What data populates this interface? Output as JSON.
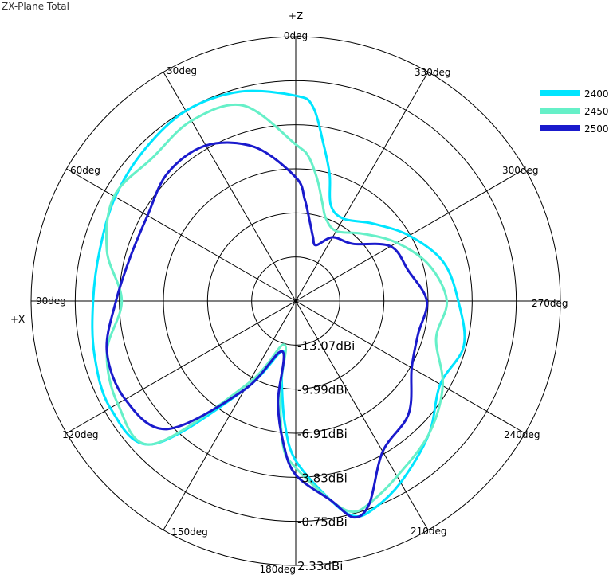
{
  "header": {
    "title": "ZX-Plane Total"
  },
  "axes": {
    "z_label": "+Z",
    "x_label": "+X"
  },
  "legend": [
    {
      "label": "2400",
      "color": "#00e5ff"
    },
    {
      "label": "2450",
      "color": "#66f0c8"
    },
    {
      "label": "2500",
      "color": "#1a1acc"
    }
  ],
  "chart_data": {
    "type": "polar-line",
    "title": "ZX-Plane Total",
    "angle_unit": "deg",
    "angle_direction": "counterclockwise",
    "angle_zero": "top",
    "angle_ticks": [
      "0deg",
      "30deg",
      "60deg",
      "90deg",
      "120deg",
      "150deg",
      "180deg",
      "210deg",
      "240deg",
      "270deg",
      "300deg",
      "330deg"
    ],
    "radial_unit": "dBi",
    "radial_range": [
      -16.15,
      2.33
    ],
    "radial_ticks": [
      "-13.07dBi",
      "-9.99dBi",
      "-6.91dBi",
      "-3.83dBi",
      "-0.75dBi",
      "2.33dBi"
    ],
    "radial_tick_values": [
      -13.07,
      -9.99,
      -6.91,
      -3.83,
      -0.75,
      2.33
    ],
    "legend_position": "top-right",
    "grid": true,
    "angles": [
      0,
      15,
      30,
      45,
      60,
      75,
      90,
      105,
      120,
      135,
      150,
      165,
      170,
      175,
      180,
      190,
      195,
      200,
      210,
      225,
      240,
      255,
      270,
      285,
      300,
      315,
      330,
      340,
      345,
      350,
      355
    ],
    "series": [
      {
        "name": "2400",
        "color": "#00e5ff",
        "values": [
          -1.8,
          -1.0,
          -0.8,
          -1.2,
          -1.6,
          -2.0,
          -2.0,
          -1.6,
          -1.2,
          -2.0,
          -9.0,
          -12.5,
          -10.5,
          -7.5,
          -5.0,
          -2.0,
          -0.6,
          -0.6,
          -1.5,
          -3.0,
          -4.5,
          -4.0,
          -4.8,
          -5.5,
          -7.0,
          -8.5,
          -9.5,
          -9.0,
          -7.0,
          -5.0,
          -2.5
        ]
      },
      {
        "name": "2450",
        "color": "#66f0c8",
        "values": [
          -5.2,
          -2.0,
          -1.6,
          -2.0,
          -1.5,
          -2.5,
          -4.0,
          -2.5,
          -1.8,
          -2.0,
          -9.5,
          -13.0,
          -10.0,
          -6.0,
          -4.5,
          -2.0,
          -0.9,
          -1.1,
          -2.0,
          -3.0,
          -4.3,
          -6.0,
          -5.6,
          -6.5,
          -8.0,
          -9.5,
          -10.5,
          -10.0,
          -9.0,
          -7.5,
          -6.0
        ]
      },
      {
        "name": "2500",
        "color": "#1a1acc",
        "values": [
          -7.5,
          -5.0,
          -3.6,
          -3.5,
          -4.2,
          -4.2,
          -3.6,
          -2.5,
          -2.4,
          -3.5,
          -9.0,
          -12.5,
          -9.0,
          -6.2,
          -4.0,
          -2.0,
          -0.5,
          -1.1,
          -4.0,
          -5.0,
          -6.8,
          -7.3,
          -7.0,
          -8.0,
          -8.5,
          -10.5,
          -11.0,
          -12.0,
          -11.5,
          -10.5,
          -9.0
        ]
      }
    ]
  }
}
